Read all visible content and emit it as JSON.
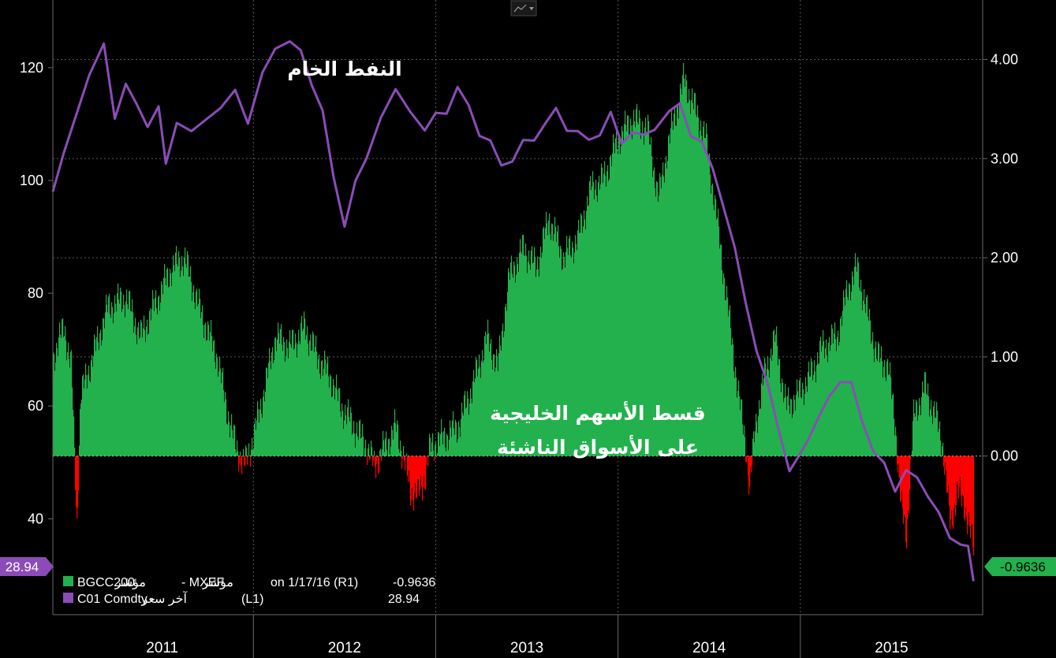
{
  "chart_data": {
    "type": "area",
    "x_tick_labels": [
      "2011",
      "2012",
      "2013",
      "2014",
      "2015"
    ],
    "left_axis": {
      "ylim": [
        23,
        132
      ],
      "ticks": [
        40,
        60,
        80,
        100,
        120
      ],
      "tick_labels": [
        "40",
        "60",
        "80",
        "100",
        "120"
      ]
    },
    "right_axis": {
      "ylim": [
        -1.6,
        4.6
      ],
      "ticks": [
        0,
        1,
        2,
        3,
        4
      ],
      "tick_labels": [
        "0.00",
        "1.00",
        "2.00",
        "3.00",
        "4.00"
      ]
    },
    "annotations": {
      "oil": "النفط الخام",
      "premium_line1": "قسط الأسهم الخليجية",
      "premium_line2": "على الأسواق الناشئة"
    },
    "legend": {
      "row1": {
        "series": "BGCC200",
        "label1": "مؤشر",
        "sep": "- MXEF",
        "label2": "مؤشر",
        "info": "on 1/17/16 (R1)",
        "value": "-0.9636"
      },
      "row2": {
        "series": "C01 Comdty -",
        "label": "آخر سعر",
        "axis": "(L1)",
        "value": "28.94"
      }
    },
    "last_values": {
      "oil_badge": "28.94",
      "spread_badge": "-0.9636"
    },
    "series": [
      {
        "name": "BGCC200 - MXEF",
        "axis": "right",
        "color_pos": "#22b14c",
        "color_neg": "#ff0000",
        "points": [
          [
            2010.9,
            1.0
          ],
          [
            2010.96,
            1.3
          ],
          [
            2011.0,
            0.9
          ],
          [
            2011.03,
            -0.7
          ],
          [
            2011.05,
            0.6
          ],
          [
            2011.1,
            0.9
          ],
          [
            2011.2,
            1.5
          ],
          [
            2011.3,
            1.6
          ],
          [
            2011.38,
            1.2
          ],
          [
            2011.45,
            1.5
          ],
          [
            2011.55,
            1.9
          ],
          [
            2011.62,
            2.0
          ],
          [
            2011.7,
            1.5
          ],
          [
            2011.8,
            1.0
          ],
          [
            2011.85,
            0.5
          ],
          [
            2011.9,
            0.1
          ],
          [
            2011.95,
            -0.1
          ],
          [
            2012.0,
            0.2
          ],
          [
            2012.05,
            0.6
          ],
          [
            2012.12,
            1.2
          ],
          [
            2012.2,
            1.1
          ],
          [
            2012.28,
            1.3
          ],
          [
            2012.35,
            1.0
          ],
          [
            2012.42,
            0.8
          ],
          [
            2012.48,
            0.5
          ],
          [
            2012.55,
            0.3
          ],
          [
            2012.62,
            0.1
          ],
          [
            2012.66,
            -0.1
          ],
          [
            2012.72,
            0.1
          ],
          [
            2012.78,
            0.3
          ],
          [
            2012.82,
            0.0
          ],
          [
            2012.86,
            -0.35
          ],
          [
            2012.9,
            -0.4
          ],
          [
            2012.94,
            -0.2
          ],
          [
            2012.97,
            0.1
          ],
          [
            2013.05,
            0.2
          ],
          [
            2013.12,
            0.3
          ],
          [
            2013.2,
            0.7
          ],
          [
            2013.28,
            1.2
          ],
          [
            2013.34,
            0.9
          ],
          [
            2013.4,
            1.8
          ],
          [
            2013.48,
            2.1
          ],
          [
            2013.55,
            1.9
          ],
          [
            2013.62,
            2.4
          ],
          [
            2013.7,
            2.0
          ],
          [
            2013.78,
            2.2
          ],
          [
            2013.85,
            2.7
          ],
          [
            2013.92,
            2.8
          ],
          [
            2014.0,
            3.2
          ],
          [
            2014.08,
            3.4
          ],
          [
            2014.16,
            3.3
          ],
          [
            2014.22,
            2.6
          ],
          [
            2014.28,
            3.2
          ],
          [
            2014.36,
            3.8
          ],
          [
            2014.42,
            3.5
          ],
          [
            2014.48,
            3.2
          ],
          [
            2014.54,
            2.4
          ],
          [
            2014.6,
            1.5
          ],
          [
            2014.66,
            0.6
          ],
          [
            2014.7,
            0.1
          ],
          [
            2014.72,
            -0.35
          ],
          [
            2014.75,
            0.3
          ],
          [
            2014.8,
            0.8
          ],
          [
            2014.86,
            1.2
          ],
          [
            2014.92,
            0.5
          ],
          [
            2014.98,
            0.6
          ],
          [
            2015.05,
            0.8
          ],
          [
            2015.12,
            1.1
          ],
          [
            2015.2,
            1.2
          ],
          [
            2015.26,
            1.7
          ],
          [
            2015.31,
            1.9
          ],
          [
            2015.37,
            1.4
          ],
          [
            2015.42,
            1.0
          ],
          [
            2015.48,
            0.9
          ],
          [
            2015.52,
            0.3
          ],
          [
            2015.55,
            -0.5
          ],
          [
            2015.58,
            -0.8
          ],
          [
            2015.62,
            0.4
          ],
          [
            2015.68,
            0.7
          ],
          [
            2015.74,
            0.4
          ],
          [
            2015.78,
            0.1
          ],
          [
            2015.82,
            -0.7
          ],
          [
            2015.86,
            -0.35
          ],
          [
            2015.9,
            -0.5
          ],
          [
            2015.95,
            -0.96
          ]
        ]
      },
      {
        "name": "C01 Comdty",
        "axis": "left",
        "color": "#8b4cb8",
        "points": [
          [
            2010.9,
            98
          ],
          [
            2010.96,
            104
          ],
          [
            2011.03,
            113
          ],
          [
            2011.1,
            118
          ],
          [
            2011.18,
            124
          ],
          [
            2011.24,
            112
          ],
          [
            2011.3,
            116
          ],
          [
            2011.36,
            114
          ],
          [
            2011.42,
            110
          ],
          [
            2011.48,
            112
          ],
          [
            2011.52,
            104
          ],
          [
            2011.58,
            110
          ],
          [
            2011.66,
            108
          ],
          [
            2011.74,
            112
          ],
          [
            2011.82,
            112
          ],
          [
            2011.9,
            116
          ],
          [
            2011.97,
            111
          ],
          [
            2012.05,
            118
          ],
          [
            2012.12,
            124
          ],
          [
            2012.2,
            125
          ],
          [
            2012.26,
            122
          ],
          [
            2012.32,
            118
          ],
          [
            2012.38,
            112
          ],
          [
            2012.44,
            100
          ],
          [
            2012.5,
            93
          ],
          [
            2012.56,
            99
          ],
          [
            2012.62,
            104
          ],
          [
            2012.7,
            112
          ],
          [
            2012.78,
            115
          ],
          [
            2012.86,
            113
          ],
          [
            2012.94,
            109
          ],
          [
            2013.0,
            111
          ],
          [
            2013.06,
            113
          ],
          [
            2013.12,
            116
          ],
          [
            2013.18,
            113
          ],
          [
            2013.24,
            109
          ],
          [
            2013.3,
            106
          ],
          [
            2013.36,
            103
          ],
          [
            2013.42,
            104
          ],
          [
            2013.48,
            106
          ],
          [
            2013.54,
            108
          ],
          [
            2013.6,
            110
          ],
          [
            2013.66,
            112
          ],
          [
            2013.72,
            110
          ],
          [
            2013.78,
            108
          ],
          [
            2013.84,
            107
          ],
          [
            2013.9,
            109
          ],
          [
            2013.96,
            111
          ],
          [
            2014.02,
            107
          ],
          [
            2014.08,
            109
          ],
          [
            2014.14,
            107
          ],
          [
            2014.2,
            110
          ],
          [
            2014.28,
            112
          ],
          [
            2014.34,
            113
          ],
          [
            2014.4,
            109
          ],
          [
            2014.46,
            106
          ],
          [
            2014.52,
            102
          ],
          [
            2014.58,
            96
          ],
          [
            2014.64,
            87
          ],
          [
            2014.7,
            79
          ],
          [
            2014.76,
            70
          ],
          [
            2014.82,
            63
          ],
          [
            2014.88,
            57
          ],
          [
            2014.94,
            48
          ],
          [
            2014.98,
            50
          ],
          [
            2015.04,
            55
          ],
          [
            2015.1,
            57
          ],
          [
            2015.16,
            62
          ],
          [
            2015.22,
            65
          ],
          [
            2015.28,
            63
          ],
          [
            2015.34,
            58
          ],
          [
            2015.4,
            52
          ],
          [
            2015.46,
            49
          ],
          [
            2015.52,
            46
          ],
          [
            2015.58,
            48
          ],
          [
            2015.64,
            47
          ],
          [
            2015.7,
            45
          ],
          [
            2015.76,
            40
          ],
          [
            2015.82,
            37
          ],
          [
            2015.88,
            36
          ],
          [
            2015.92,
            34
          ],
          [
            2015.95,
            28.94
          ]
        ]
      }
    ]
  }
}
